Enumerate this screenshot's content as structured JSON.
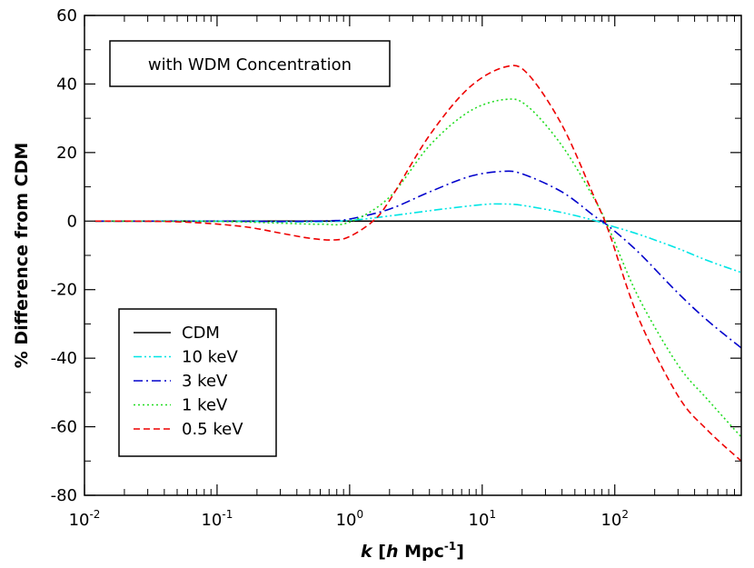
{
  "chart_data": {
    "type": "line",
    "annotation": "with WDM Concentration",
    "xlabel": {
      "k": "k",
      "open": " [",
      "h": "h",
      "unit": " Mpc",
      "exp": "-1",
      "close": "]"
    },
    "ylabel": "% Difference from CDM",
    "xscale": "log",
    "xlim": [
      0.01,
      900
    ],
    "ylim": [
      -80,
      60
    ],
    "y_ticks": [
      60,
      40,
      20,
      0,
      -20,
      -40,
      -60,
      -80
    ],
    "x_ticks": [
      {
        "value": 0.01,
        "base": "10",
        "exp": "-2"
      },
      {
        "value": 0.1,
        "base": "10",
        "exp": "-1"
      },
      {
        "value": 1,
        "base": "10",
        "exp": "0"
      },
      {
        "value": 10,
        "base": "10",
        "exp": "1"
      },
      {
        "value": 100,
        "base": "10",
        "exp": "2"
      }
    ],
    "legend_position": "bottom-left",
    "grid": false,
    "series": [
      {
        "name": "CDM",
        "color": "#000000",
        "dash": "none",
        "points": [
          [
            0.012,
            0
          ],
          [
            900,
            0
          ]
        ]
      },
      {
        "name": "10 keV",
        "color": "#00e5e5",
        "dash": "9,3,2,3,2,3",
        "points": [
          [
            0.012,
            0
          ],
          [
            0.1,
            0
          ],
          [
            0.5,
            -0.2
          ],
          [
            1,
            0.2
          ],
          [
            2,
            1.5
          ],
          [
            5,
            3.5
          ],
          [
            10,
            4.8
          ],
          [
            14,
            5.0
          ],
          [
            20,
            4.6
          ],
          [
            40,
            2.5
          ],
          [
            70,
            0.2
          ],
          [
            90,
            -1.2
          ],
          [
            150,
            -3.8
          ],
          [
            300,
            -8
          ],
          [
            500,
            -11.5
          ],
          [
            900,
            -15
          ]
        ]
      },
      {
        "name": "3 keV",
        "color": "#0000cc",
        "dash": "10,4,2,4",
        "points": [
          [
            0.012,
            0
          ],
          [
            0.1,
            0
          ],
          [
            0.3,
            -0.1
          ],
          [
            0.7,
            0.1
          ],
          [
            1,
            0.6
          ],
          [
            2,
            3.5
          ],
          [
            4,
            8.5
          ],
          [
            8,
            13
          ],
          [
            14,
            14.5
          ],
          [
            20,
            13.8
          ],
          [
            40,
            8.5
          ],
          [
            70,
            1.5
          ],
          [
            90,
            -1.5
          ],
          [
            150,
            -9
          ],
          [
            300,
            -21
          ],
          [
            500,
            -29
          ],
          [
            900,
            -37
          ]
        ]
      },
      {
        "name": "1 keV",
        "color": "#22dd22",
        "dash": "2,3",
        "points": [
          [
            0.012,
            0
          ],
          [
            0.1,
            -0.1
          ],
          [
            0.3,
            -0.6
          ],
          [
            0.6,
            -0.9
          ],
          [
            1,
            -0.3
          ],
          [
            2,
            7
          ],
          [
            4,
            22
          ],
          [
            8,
            32
          ],
          [
            15,
            35.5
          ],
          [
            22,
            33.5
          ],
          [
            40,
            22
          ],
          [
            70,
            6.5
          ],
          [
            90,
            -2
          ],
          [
            150,
            -22
          ],
          [
            300,
            -42
          ],
          [
            500,
            -52
          ],
          [
            900,
            -63
          ]
        ]
      },
      {
        "name": "0.5 keV",
        "color": "#ee0000",
        "dash": "7,4",
        "points": [
          [
            0.012,
            0
          ],
          [
            0.05,
            -0.2
          ],
          [
            0.15,
            -1.5
          ],
          [
            0.3,
            -3.5
          ],
          [
            0.5,
            -5
          ],
          [
            0.75,
            -5.5
          ],
          [
            1,
            -4.5
          ],
          [
            1.5,
            0
          ],
          [
            2,
            6
          ],
          [
            4,
            25
          ],
          [
            8,
            39
          ],
          [
            15,
            45
          ],
          [
            22,
            43
          ],
          [
            40,
            28
          ],
          [
            70,
            7
          ],
          [
            90,
            -3
          ],
          [
            150,
            -28
          ],
          [
            300,
            -51
          ],
          [
            500,
            -61
          ],
          [
            900,
            -70
          ]
        ]
      }
    ]
  }
}
